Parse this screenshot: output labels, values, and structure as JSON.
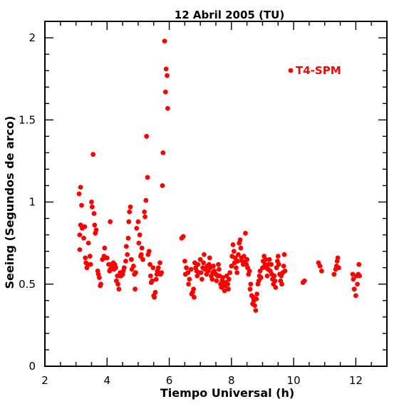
{
  "chart_data": {
    "type": "scatter",
    "title": "12 Abril 2005 (TU)",
    "xlabel": "Tiempo Universal (h)",
    "ylabel": "Seeing (Segundos de arco)",
    "xlim": [
      2,
      13
    ],
    "ylim": [
      0,
      2.1
    ],
    "xticks": [
      2,
      4,
      6,
      8,
      10,
      12
    ],
    "xtick_labels": [
      "2",
      "4",
      "6",
      "8",
      "10",
      "12"
    ],
    "yticks": [
      0,
      0.5,
      1,
      1.5,
      2
    ],
    "ytick_labels": [
      "0",
      "0.5",
      "1",
      "1.5",
      "2"
    ],
    "grid": false,
    "legend_position": "top-right",
    "color": "#ff0000",
    "series": [
      {
        "name": "T4-SPM",
        "points": [
          [
            3.1,
            1.05
          ],
          [
            3.15,
            1.09
          ],
          [
            3.18,
            0.98
          ],
          [
            3.12,
            0.8
          ],
          [
            3.15,
            0.86
          ],
          [
            3.2,
            0.84
          ],
          [
            3.25,
            0.78
          ],
          [
            3.28,
            0.85
          ],
          [
            3.12,
            0.71
          ],
          [
            3.3,
            0.66
          ],
          [
            3.32,
            0.63
          ],
          [
            3.35,
            0.6
          ],
          [
            3.38,
            0.62
          ],
          [
            3.4,
            0.75
          ],
          [
            3.45,
            0.67
          ],
          [
            3.47,
            0.62
          ],
          [
            3.5,
            1.0
          ],
          [
            3.52,
            0.97
          ],
          [
            3.55,
            1.29
          ],
          [
            3.58,
            0.93
          ],
          [
            3.6,
            0.86
          ],
          [
            3.62,
            0.81
          ],
          [
            3.65,
            0.83
          ],
          [
            3.7,
            0.58
          ],
          [
            3.72,
            0.56
          ],
          [
            3.75,
            0.54
          ],
          [
            3.78,
            0.49
          ],
          [
            3.8,
            0.5
          ],
          [
            3.85,
            0.65
          ],
          [
            3.9,
            0.67
          ],
          [
            3.92,
            0.72
          ],
          [
            3.95,
            0.66
          ],
          [
            4.0,
            0.66
          ],
          [
            4.05,
            0.62
          ],
          [
            4.08,
            0.58
          ],
          [
            4.1,
            0.59
          ],
          [
            4.1,
            0.88
          ],
          [
            4.12,
            0.62
          ],
          [
            4.15,
            0.61
          ],
          [
            4.2,
            0.63
          ],
          [
            4.22,
            0.59
          ],
          [
            4.25,
            0.62
          ],
          [
            4.28,
            0.6
          ],
          [
            4.3,
            0.52
          ],
          [
            4.33,
            0.55
          ],
          [
            4.35,
            0.5
          ],
          [
            4.38,
            0.47
          ],
          [
            4.4,
            0.55
          ],
          [
            4.42,
            0.57
          ],
          [
            4.45,
            0.55
          ],
          [
            4.5,
            0.56
          ],
          [
            4.52,
            0.58
          ],
          [
            4.55,
            0.6
          ],
          [
            4.6,
            0.64
          ],
          [
            4.62,
            0.73
          ],
          [
            4.65,
            0.68
          ],
          [
            4.68,
            0.78
          ],
          [
            4.7,
            0.88
          ],
          [
            4.72,
            0.94
          ],
          [
            4.75,
            0.97
          ],
          [
            4.78,
            0.65
          ],
          [
            4.8,
            0.59
          ],
          [
            4.85,
            0.61
          ],
          [
            4.88,
            0.56
          ],
          [
            4.9,
            0.47
          ],
          [
            4.92,
            0.57
          ],
          [
            4.95,
            0.84
          ],
          [
            5.0,
            0.88
          ],
          [
            5.02,
            0.75
          ],
          [
            5.05,
            0.8
          ],
          [
            5.08,
            0.67
          ],
          [
            5.1,
            0.68
          ],
          [
            5.12,
            0.72
          ],
          [
            5.15,
            0.65
          ],
          [
            5.2,
            0.94
          ],
          [
            5.22,
            0.91
          ],
          [
            5.25,
            1.01
          ],
          [
            5.27,
            1.4
          ],
          [
            5.3,
            1.15
          ],
          [
            5.32,
            0.68
          ],
          [
            5.35,
            0.7
          ],
          [
            5.38,
            0.62
          ],
          [
            5.4,
            0.55
          ],
          [
            5.42,
            0.51
          ],
          [
            5.45,
            0.52
          ],
          [
            5.48,
            0.6
          ],
          [
            5.5,
            0.43
          ],
          [
            5.52,
            0.42
          ],
          [
            5.55,
            0.45
          ],
          [
            5.58,
            0.53
          ],
          [
            5.6,
            0.56
          ],
          [
            5.62,
            0.58
          ],
          [
            5.65,
            0.6
          ],
          [
            5.7,
            0.63
          ],
          [
            5.72,
            0.56
          ],
          [
            5.75,
            0.57
          ],
          [
            5.78,
            1.1
          ],
          [
            5.8,
            1.3
          ],
          [
            5.85,
            1.98
          ],
          [
            5.88,
            1.67
          ],
          [
            5.9,
            1.81
          ],
          [
            5.93,
            1.77
          ],
          [
            5.95,
            1.57
          ],
          [
            6.4,
            0.78
          ],
          [
            6.45,
            0.79
          ],
          [
            6.5,
            0.64
          ],
          [
            6.52,
            0.56
          ],
          [
            6.55,
            0.6
          ],
          [
            6.6,
            0.57
          ],
          [
            6.62,
            0.5
          ],
          [
            6.65,
            0.53
          ],
          [
            6.7,
            0.59
          ],
          [
            6.72,
            0.44
          ],
          [
            6.75,
            0.45
          ],
          [
            6.78,
            0.47
          ],
          [
            6.8,
            0.42
          ],
          [
            6.82,
            0.63
          ],
          [
            6.85,
            0.6
          ],
          [
            6.88,
            0.58
          ],
          [
            6.9,
            0.55
          ],
          [
            6.92,
            0.62
          ],
          [
            6.95,
            0.57
          ],
          [
            7.0,
            0.65
          ],
          [
            7.02,
            0.57
          ],
          [
            7.05,
            0.53
          ],
          [
            7.08,
            0.6
          ],
          [
            7.1,
            0.63
          ],
          [
            7.12,
            0.68
          ],
          [
            7.15,
            0.59
          ],
          [
            7.2,
            0.56
          ],
          [
            7.22,
            0.61
          ],
          [
            7.25,
            0.58
          ],
          [
            7.28,
            0.62
          ],
          [
            7.3,
            0.66
          ],
          [
            7.32,
            0.6
          ],
          [
            7.35,
            0.55
          ],
          [
            7.38,
            0.53
          ],
          [
            7.4,
            0.57
          ],
          [
            7.42,
            0.61
          ],
          [
            7.45,
            0.58
          ],
          [
            7.5,
            0.56
          ],
          [
            7.52,
            0.52
          ],
          [
            7.55,
            0.55
          ],
          [
            7.58,
            0.62
          ],
          [
            7.6,
            0.59
          ],
          [
            7.62,
            0.55
          ],
          [
            7.65,
            0.5
          ],
          [
            7.68,
            0.48
          ],
          [
            7.7,
            0.52
          ],
          [
            7.72,
            0.54
          ],
          [
            7.75,
            0.5
          ],
          [
            7.78,
            0.46
          ],
          [
            7.8,
            0.49
          ],
          [
            7.82,
            0.51
          ],
          [
            7.85,
            0.55
          ],
          [
            7.88,
            0.5
          ],
          [
            7.9,
            0.47
          ],
          [
            7.92,
            0.53
          ],
          [
            7.95,
            0.57
          ],
          [
            8.0,
            0.61
          ],
          [
            8.02,
            0.67
          ],
          [
            8.05,
            0.74
          ],
          [
            8.08,
            0.7
          ],
          [
            8.1,
            0.63
          ],
          [
            8.12,
            0.66
          ],
          [
            8.15,
            0.6
          ],
          [
            8.18,
            0.57
          ],
          [
            8.2,
            0.64
          ],
          [
            8.22,
            0.68
          ],
          [
            8.25,
            0.75
          ],
          [
            8.28,
            0.77
          ],
          [
            8.3,
            0.72
          ],
          [
            8.32,
            0.66
          ],
          [
            8.35,
            0.64
          ],
          [
            8.38,
            0.62
          ],
          [
            8.4,
            0.67
          ],
          [
            8.42,
            0.63
          ],
          [
            8.45,
            0.81
          ],
          [
            8.48,
            0.62
          ],
          [
            8.5,
            0.65
          ],
          [
            8.52,
            0.6
          ],
          [
            8.55,
            0.56
          ],
          [
            8.58,
            0.58
          ],
          [
            8.6,
            0.47
          ],
          [
            8.62,
            0.5
          ],
          [
            8.65,
            0.43
          ],
          [
            8.68,
            0.38
          ],
          [
            8.7,
            0.42
          ],
          [
            8.72,
            0.4
          ],
          [
            8.75,
            0.37
          ],
          [
            8.78,
            0.34
          ],
          [
            8.8,
            0.41
          ],
          [
            8.82,
            0.44
          ],
          [
            8.85,
            0.5
          ],
          [
            8.88,
            0.52
          ],
          [
            8.9,
            0.55
          ],
          [
            8.92,
            0.58
          ],
          [
            8.95,
            0.54
          ],
          [
            9.0,
            0.6
          ],
          [
            9.02,
            0.64
          ],
          [
            9.05,
            0.67
          ],
          [
            9.08,
            0.62
          ],
          [
            9.1,
            0.65
          ],
          [
            9.12,
            0.6
          ],
          [
            9.15,
            0.55
          ],
          [
            9.18,
            0.59
          ],
          [
            9.2,
            0.62
          ],
          [
            9.22,
            0.65
          ],
          [
            9.25,
            0.58
          ],
          [
            9.28,
            0.62
          ],
          [
            9.3,
            0.56
          ],
          [
            9.32,
            0.53
          ],
          [
            9.35,
            0.5
          ],
          [
            9.38,
            0.55
          ],
          [
            9.4,
            0.52
          ],
          [
            9.42,
            0.48
          ],
          [
            9.45,
            0.6
          ],
          [
            9.48,
            0.64
          ],
          [
            9.5,
            0.67
          ],
          [
            9.52,
            0.62
          ],
          [
            9.55,
            0.56
          ],
          [
            9.58,
            0.52
          ],
          [
            9.6,
            0.55
          ],
          [
            9.62,
            0.5
          ],
          [
            9.65,
            0.57
          ],
          [
            9.68,
            0.61
          ],
          [
            9.7,
            0.68
          ],
          [
            9.72,
            0.58
          ],
          [
            10.3,
            0.51
          ],
          [
            10.35,
            0.52
          ],
          [
            10.8,
            0.63
          ],
          [
            10.85,
            0.61
          ],
          [
            10.9,
            0.58
          ],
          [
            11.3,
            0.56
          ],
          [
            11.35,
            0.59
          ],
          [
            11.38,
            0.61
          ],
          [
            11.4,
            0.64
          ],
          [
            11.42,
            0.66
          ],
          [
            11.45,
            0.6
          ],
          [
            11.9,
            0.56
          ],
          [
            11.92,
            0.53
          ],
          [
            11.95,
            0.47
          ],
          [
            12.0,
            0.43
          ],
          [
            12.02,
            0.55
          ],
          [
            12.05,
            0.5
          ],
          [
            12.08,
            0.56
          ],
          [
            12.1,
            0.62
          ],
          [
            12.12,
            0.55
          ]
        ]
      }
    ]
  }
}
